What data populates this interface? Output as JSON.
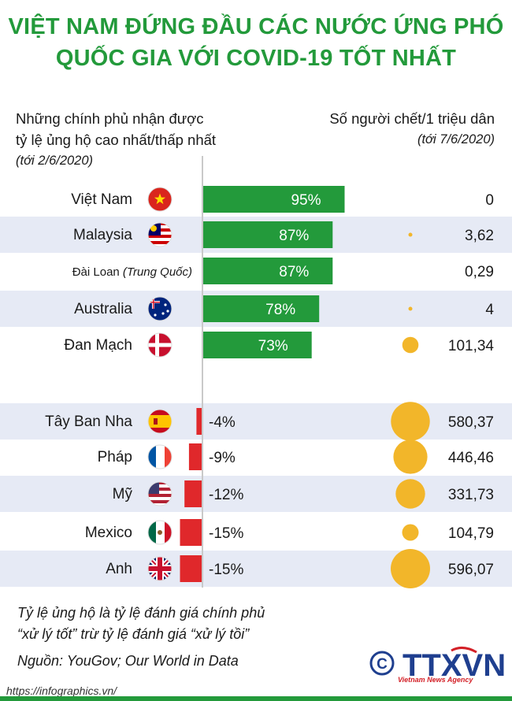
{
  "title_line1": "VIỆT NAM ĐỨNG ĐẦU CÁC NƯỚC ỨNG PHÓ",
  "title_line2": "QUỐC GIA VỚI COVID-19 TỐT NHẤT",
  "left_header_line1": "Những chính phủ nhận được",
  "left_header_line2": "tỷ lệ ủng hộ cao nhất/thấp nhất",
  "left_header_note": "(tới 2/6/2020)",
  "right_header_line1": "Số người chết/1 triệu dân",
  "right_header_note": "(tới 7/6/2020)",
  "footnote_line1": "Tỷ lệ ủng hộ là tỷ lệ đánh giá chính phủ",
  "footnote_line2": "“xử lý tốt” trừ tỷ lệ đánh giá “xử lý tồi”",
  "source": "Nguồn: YouGov; Our World in Data",
  "url": "https://infographics.vn/",
  "logo": "TTXVN",
  "logo_sub": "Vietnam News Agency",
  "colors": {
    "green": "#239a3b",
    "red": "#e0282b",
    "yellow": "#f2b62a",
    "band": "#e6eaf5"
  },
  "chart_data": {
    "type": "bar",
    "series": [
      {
        "name": "Tỷ lệ ủng hộ",
        "unit": "%",
        "values": [
          95,
          87,
          87,
          78,
          73,
          -4,
          -9,
          -12,
          -15,
          -15
        ],
        "labels": [
          "95%",
          "87%",
          "87%",
          "78%",
          "73%",
          "-4%",
          "-9%",
          "-12%",
          "-15%",
          "-15%"
        ]
      },
      {
        "name": "Số người chết/1 triệu dân",
        "values": [
          0,
          3.62,
          0.29,
          4,
          101.34,
          580.37,
          446.46,
          331.73,
          104.79,
          596.07
        ],
        "labels": [
          "0",
          "3,62",
          "0,29",
          "4",
          "101,34",
          "580,37",
          "446,46",
          "331,73",
          "104,79",
          "596,07"
        ]
      }
    ],
    "categories": [
      {
        "name": "Việt Nam",
        "flag": "vietnam-flag"
      },
      {
        "name": "Malaysia",
        "flag": "malaysia-flag"
      },
      {
        "name": "Đài Loan",
        "suffix": "(Trung Quốc)",
        "flag": ""
      },
      {
        "name": "Australia",
        "flag": "australia-flag"
      },
      {
        "name": "Đan Mạch",
        "flag": "denmark-flag"
      },
      {
        "name": "Tây Ban Nha",
        "flag": "spain-flag"
      },
      {
        "name": "Pháp",
        "flag": "france-flag"
      },
      {
        "name": "Mỹ",
        "flag": "usa-flag"
      },
      {
        "name": "Mexico",
        "flag": "mexico-flag"
      },
      {
        "name": "Anh",
        "flag": "uk-flag"
      }
    ]
  }
}
